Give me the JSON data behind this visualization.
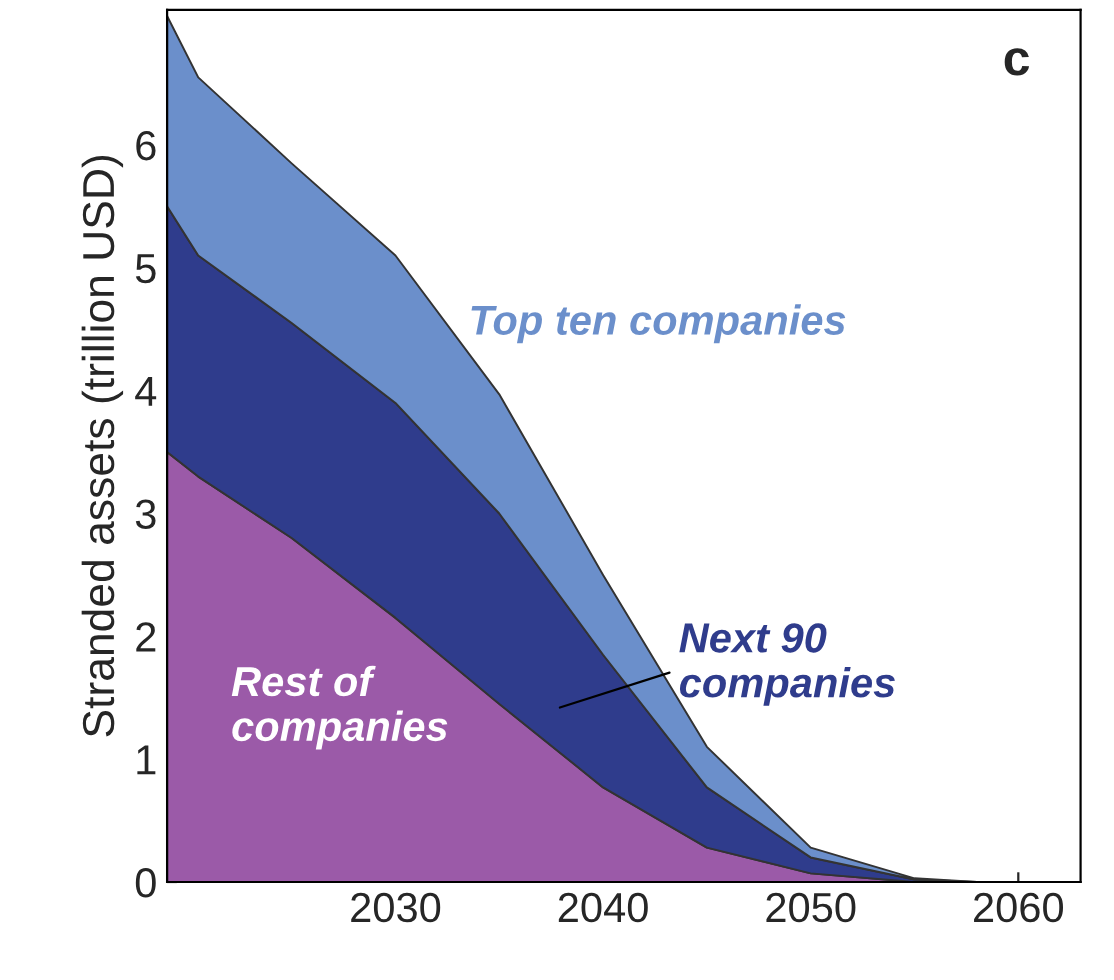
{
  "chart_data": {
    "type": "area",
    "stacked": true,
    "ylabel": "Stranded assets (trillion USD)",
    "x": [
      2019,
      2020.5,
      2025,
      2030,
      2035,
      2040,
      2045,
      2050,
      2055,
      2058
    ],
    "series": [
      {
        "name": "Rest of companies",
        "color": "#9b5aa8",
        "values": [
          3.5,
          3.3,
          2.8,
          2.15,
          1.45,
          0.77,
          0.28,
          0.07,
          0,
          0
        ]
      },
      {
        "name": "Next 90 companies",
        "color": "#2f3c8c",
        "values": [
          2.0,
          1.8,
          1.75,
          1.75,
          1.55,
          1.08,
          0.49,
          0.13,
          0.02,
          0
        ]
      },
      {
        "name": "Top ten companies",
        "color": "#6b8fcb",
        "values": [
          1.55,
          1.45,
          1.3,
          1.2,
          0.97,
          0.65,
          0.33,
          0.08,
          0.01,
          0
        ]
      }
    ],
    "xlim": [
      2019,
      2063
    ],
    "ylim": [
      0,
      7.1
    ],
    "xticks": [
      2030,
      2040,
      2050,
      2060
    ],
    "yticks": [
      0,
      1,
      2,
      3,
      4,
      5,
      6
    ],
    "annotations": [
      "c"
    ],
    "grid": false,
    "legend": false
  }
}
